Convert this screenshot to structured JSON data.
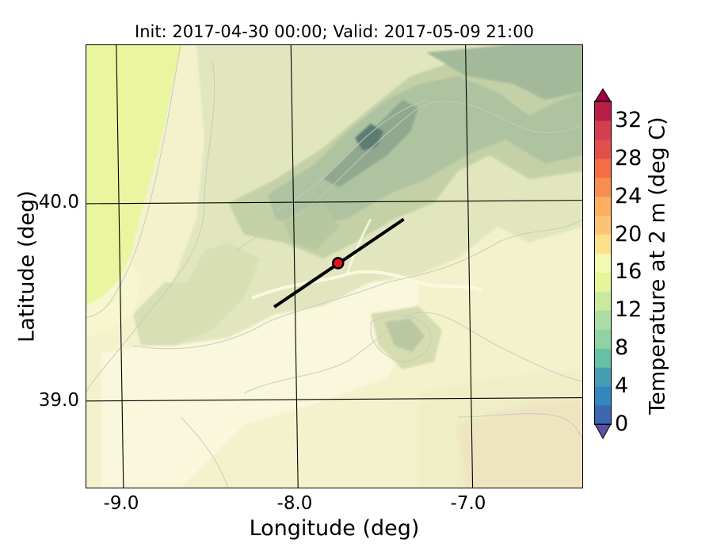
{
  "title": "Init: 2017-04-30 00:00; Valid: 2017-05-09 21:00",
  "axes": {
    "xlabel": "Longitude (deg)",
    "ylabel": "Latitude (deg)",
    "xticks": [
      "-9.0",
      "-8.0",
      "-7.0"
    ],
    "yticks": [
      "40.0",
      "39.0"
    ],
    "xlim": [
      -9.2,
      -6.35
    ],
    "ylim": [
      38.55,
      40.8
    ]
  },
  "colorbar": {
    "label": "Temperature at 2 m (deg C)",
    "ticks": [
      "0",
      "4",
      "8",
      "12",
      "16",
      "20",
      "24",
      "28",
      "32"
    ],
    "range": [
      0,
      34
    ],
    "extend": "both",
    "levels": [
      0,
      2,
      4,
      6,
      8,
      10,
      12,
      14,
      16,
      18,
      20,
      22,
      24,
      26,
      28,
      30,
      32,
      34
    ],
    "colors": [
      "#5e4fa2",
      "#3d67b0",
      "#3288bd",
      "#479eb3",
      "#66c2a5",
      "#8fd2a4",
      "#abdda4",
      "#c9e99e",
      "#e6f598",
      "#f3f9b0",
      "#fee08b",
      "#fdc475",
      "#fdae61",
      "#f88d51",
      "#f46d43",
      "#e04f4a",
      "#d53e4f",
      "#b81e48",
      "#9e0142"
    ]
  },
  "cross_section": {
    "start": {
      "lon": -8.12,
      "lat": 39.47
    },
    "end": {
      "lon": -7.37,
      "lat": 39.91
    },
    "marker": {
      "lon": -7.75,
      "lat": 39.69
    },
    "marker_color": "#e8141b"
  },
  "grid": true
}
